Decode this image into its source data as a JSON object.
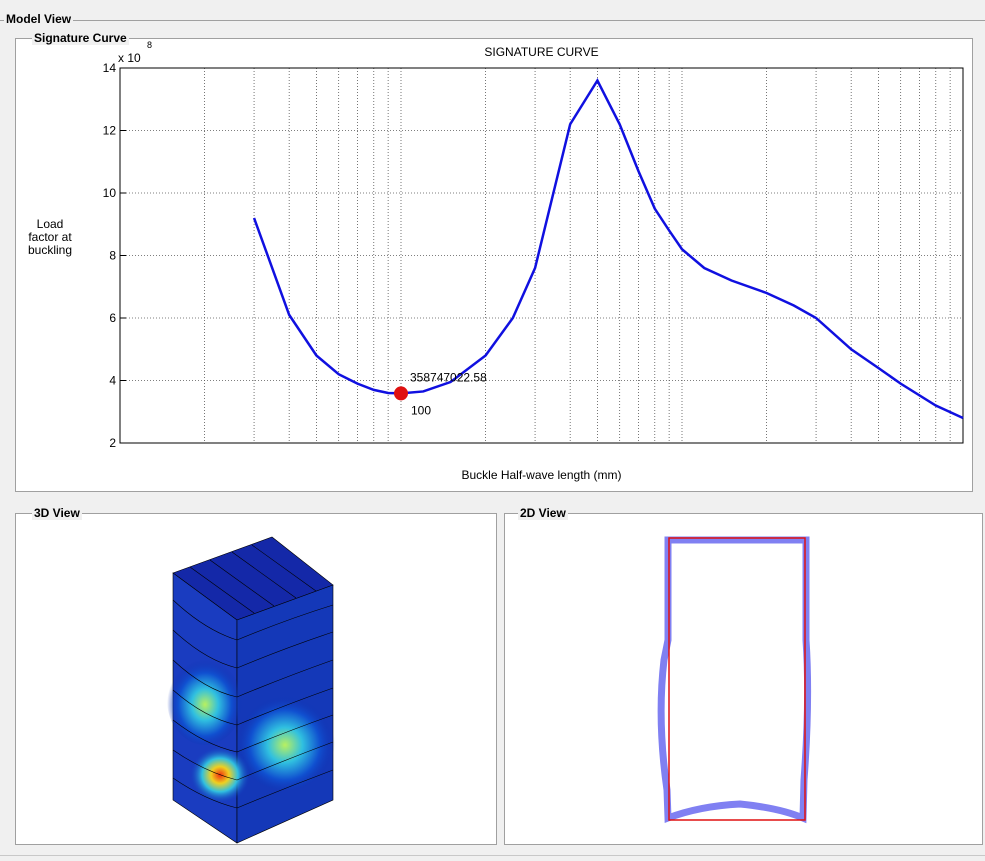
{
  "panels": {
    "model_view": "Model View",
    "signature_curve": "Signature Curve",
    "view_3d": "3D View",
    "view_2d": "2D View"
  },
  "chart_data": {
    "type": "line",
    "title": "SIGNATURE CURVE",
    "x_label": "Buckle Half-wave length (mm)",
    "y_label": "Load factor at buckling",
    "y_multiplier": {
      "base": "x 10",
      "exponent": 8
    },
    "xscale": "log",
    "xlim": [
      10,
      10000
    ],
    "xticks": [
      10,
      20,
      30,
      40,
      50,
      60,
      70,
      80,
      90,
      100,
      200,
      300,
      400,
      500,
      600,
      700,
      800,
      900,
      1000,
      2000,
      3000,
      4000,
      5000,
      6000,
      7000,
      8000,
      9000,
      10000
    ],
    "ylim": [
      2,
      14
    ],
    "yticks": [
      2,
      4,
      6,
      8,
      10,
      12,
      14
    ],
    "grid": true,
    "color": "#1010e0",
    "x": [
      30,
      40,
      50,
      60,
      70,
      80,
      90,
      100,
      120,
      150,
      200,
      250,
      300,
      400,
      500,
      600,
      700,
      800,
      900,
      1000,
      1200,
      1500,
      2000,
      2500,
      3000,
      4000,
      5000,
      6000,
      8000,
      10000
    ],
    "values": [
      9.2,
      6.1,
      4.8,
      4.2,
      3.9,
      3.7,
      3.6,
      3.5874702258,
      3.65,
      3.95,
      4.8,
      6.0,
      7.6,
      12.2,
      13.6,
      12.2,
      10.7,
      9.5,
      8.8,
      8.2,
      7.6,
      7.2,
      6.8,
      6.4,
      6.0,
      5.0,
      4.4,
      3.9,
      3.2,
      2.8
    ],
    "highlight": {
      "x": 100,
      "y": 3.5874702258,
      "label": "358747022.58",
      "color": "#e01010"
    }
  }
}
